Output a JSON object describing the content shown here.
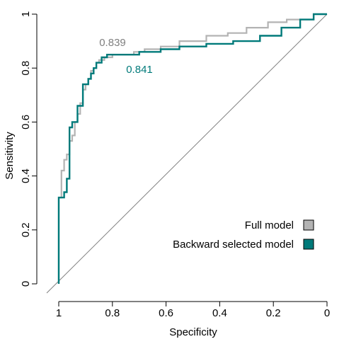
{
  "chart_data": {
    "type": "line",
    "xlabel": "Specificity",
    "ylabel": "Sensitivity",
    "x_reversed": true,
    "xlim": [
      1,
      0
    ],
    "ylim": [
      0,
      1
    ],
    "x_ticks": [
      {
        "value": 1,
        "label": "1"
      },
      {
        "value": 0.8,
        "label": "0.8"
      },
      {
        "value": 0.6,
        "label": "0.6"
      },
      {
        "value": 0.4,
        "label": "0.4"
      },
      {
        "value": 0.2,
        "label": "0.2"
      },
      {
        "value": 0,
        "label": "0"
      }
    ],
    "y_ticks": [
      {
        "value": 0,
        "label": "0"
      },
      {
        "value": 0.2,
        "label": "0.2"
      },
      {
        "value": 0.4,
        "label": "0.4"
      },
      {
        "value": 0.6,
        "label": "0.6"
      },
      {
        "value": 0.8,
        "label": "0.8"
      },
      {
        "value": 1,
        "label": "1"
      }
    ],
    "grid": false,
    "legend_position": "bottom-right",
    "reference_line": {
      "from": [
        1,
        0
      ],
      "to": [
        0,
        1
      ],
      "color": "#808080"
    },
    "series": [
      {
        "name": "Full model",
        "color": "#b3b3b3",
        "auc_label": "0.839",
        "specificity": [
          1,
          1,
          0.99,
          0.99,
          0.98,
          0.98,
          0.97,
          0.97,
          0.96,
          0.96,
          0.95,
          0.95,
          0.94,
          0.94,
          0.93,
          0.93,
          0.92,
          0.92,
          0.91,
          0.91,
          0.9,
          0.9,
          0.89,
          0.89,
          0.88,
          0.88,
          0.87,
          0.87,
          0.86,
          0.86,
          0.85,
          0.85,
          0.83,
          0.83,
          0.8,
          0.8,
          0.72,
          0.72,
          0.68,
          0.68,
          0.62,
          0.62,
          0.55,
          0.55,
          0.45,
          0.45,
          0.37,
          0.37,
          0.3,
          0.3,
          0.22,
          0.22,
          0.15,
          0.15,
          0.05,
          0.05,
          0
        ],
        "sensitivity": [
          0,
          0.32,
          0.32,
          0.42,
          0.42,
          0.46,
          0.46,
          0.48,
          0.48,
          0.53,
          0.53,
          0.55,
          0.55,
          0.6,
          0.6,
          0.63,
          0.63,
          0.67,
          0.67,
          0.72,
          0.72,
          0.74,
          0.74,
          0.76,
          0.76,
          0.79,
          0.79,
          0.8,
          0.8,
          0.82,
          0.82,
          0.83,
          0.83,
          0.84,
          0.84,
          0.85,
          0.85,
          0.86,
          0.86,
          0.87,
          0.87,
          0.88,
          0.88,
          0.9,
          0.9,
          0.92,
          0.92,
          0.93,
          0.93,
          0.95,
          0.95,
          0.97,
          0.97,
          0.98,
          0.98,
          1,
          1
        ]
      },
      {
        "name": "Backward selected model",
        "color": "#007a7a",
        "auc_label": "0.841",
        "specificity": [
          1,
          1,
          0.98,
          0.98,
          0.97,
          0.97,
          0.96,
          0.96,
          0.95,
          0.95,
          0.93,
          0.93,
          0.91,
          0.91,
          0.89,
          0.89,
          0.88,
          0.88,
          0.87,
          0.87,
          0.86,
          0.86,
          0.84,
          0.84,
          0.82,
          0.82,
          0.7,
          0.7,
          0.62,
          0.62,
          0.55,
          0.55,
          0.45,
          0.45,
          0.35,
          0.35,
          0.25,
          0.25,
          0.17,
          0.17,
          0.1,
          0.1,
          0.05,
          0.05,
          0
        ],
        "sensitivity": [
          0,
          0.32,
          0.32,
          0.34,
          0.34,
          0.39,
          0.39,
          0.58,
          0.58,
          0.6,
          0.6,
          0.66,
          0.66,
          0.74,
          0.74,
          0.76,
          0.76,
          0.78,
          0.78,
          0.8,
          0.8,
          0.82,
          0.82,
          0.84,
          0.84,
          0.85,
          0.85,
          0.86,
          0.86,
          0.87,
          0.87,
          0.88,
          0.88,
          0.89,
          0.89,
          0.9,
          0.9,
          0.92,
          0.92,
          0.95,
          0.95,
          0.98,
          0.98,
          1,
          1
        ]
      }
    ]
  }
}
